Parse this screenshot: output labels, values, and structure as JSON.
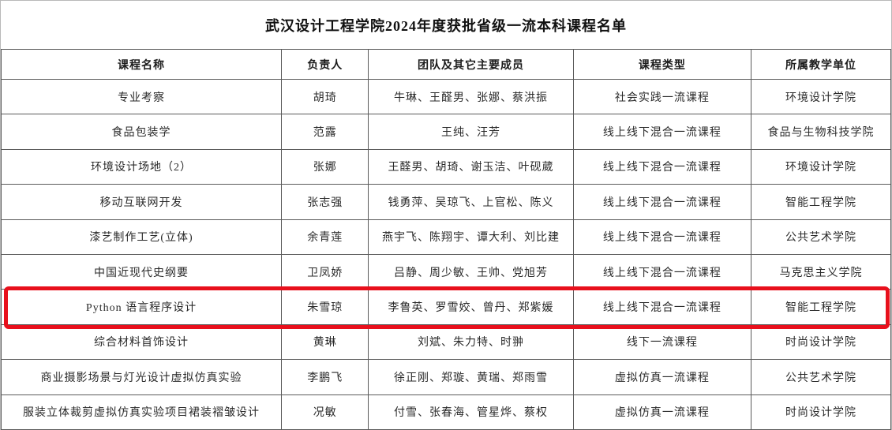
{
  "title": "武汉设计工程学院2024年度获批省级一流本科课程名单",
  "highlight": {
    "row_index": 6,
    "color": "#e8101c"
  },
  "table": {
    "headers": [
      "课程名称",
      "负责人",
      "团队及其它主要成员",
      "课程类型",
      "所属教学单位"
    ],
    "col_widths_pct": [
      31.5,
      9.8,
      23.0,
      20.0,
      15.7
    ],
    "rows": [
      [
        "专业考察",
        "胡琦",
        "牛琳、王醛男、张娜、蔡洪振",
        "社会实践一流课程",
        "环境设计学院"
      ],
      [
        "食品包装学",
        "范露",
        "王纯、汪芳",
        "线上线下混合一流课程",
        "食品与生物科技学院"
      ],
      [
        "环境设计场地（2）",
        "张娜",
        "王醛男、胡琦、谢玉洁、叶砚葳",
        "线上线下混合一流课程",
        "环境设计学院"
      ],
      [
        "移动互联网开发",
        "张志强",
        "钱勇萍、吴琼飞、上官松、陈义",
        "线上线下混合一流课程",
        "智能工程学院"
      ],
      [
        "漆艺制作工艺(立体)",
        "余青莲",
        "燕宇飞、陈翔宇、谭大利、刘比建",
        "线上线下混合一流课程",
        "公共艺术学院"
      ],
      [
        "中国近现代史纲要",
        "卫凤娇",
        "吕静、周少敏、王帅、党旭芳",
        "线上线下混合一流课程",
        "马克思主义学院"
      ],
      [
        "Python 语言程序设计",
        "朱雪琼",
        "李鲁英、罗雪姣、曾丹、郑紫媛",
        "线上线下混合一流课程",
        "智能工程学院"
      ],
      [
        "综合材料首饰设计",
        "黄琳",
        "刘斌、朱力特、时翀",
        "线下一流课程",
        "时尚设计学院"
      ],
      [
        "商业摄影场景与灯光设计虚拟仿真实验",
        "李鹏飞",
        "徐正刚、郑璇、黄瑞、郑雨雪",
        "虚拟仿真一流课程",
        "公共艺术学院"
      ],
      [
        "服装立体裁剪虚拟仿真实验项目裙装褶皱设计",
        "况敏",
        "付雪、张春海、管星烨、蔡权",
        "虚拟仿真一流课程",
        "时尚设计学院"
      ]
    ]
  }
}
